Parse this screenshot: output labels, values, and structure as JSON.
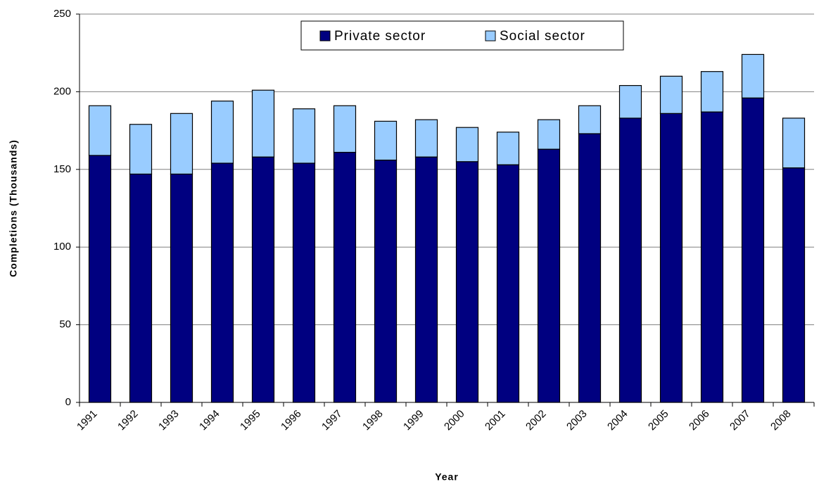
{
  "chart_data": {
    "type": "stacked_bar",
    "x_label": "Year",
    "y_label": "Completions (Thousands)",
    "categories": [
      "1991",
      "1992",
      "1993",
      "1994",
      "1995",
      "1996",
      "1997",
      "1998",
      "1999",
      "2000",
      "2001",
      "2002",
      "2003",
      "2004",
      "2005",
      "2006",
      "2007",
      "2008"
    ],
    "series": [
      {
        "name": "Private sector",
        "color": "#000080",
        "values": [
          159,
          147,
          147,
          154,
          158,
          154,
          161,
          156,
          158,
          155,
          153,
          163,
          173,
          183,
          186,
          187,
          196,
          151
        ]
      },
      {
        "name": "Social sector",
        "color": "#99ccff",
        "values": [
          32,
          32,
          39,
          40,
          43,
          35,
          30,
          25,
          24,
          22,
          21,
          19,
          18,
          21,
          24,
          26,
          28,
          32
        ]
      }
    ],
    "ylim": [
      0,
      250
    ],
    "yticks": [
      0,
      50,
      100,
      150,
      200,
      250
    ],
    "grid": true,
    "legend": "top"
  }
}
